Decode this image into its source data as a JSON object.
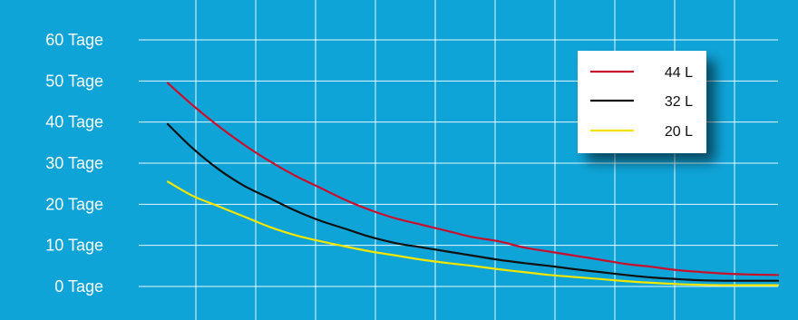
{
  "colors": {
    "background": "#0fa4d8",
    "grid": "#ffffff",
    "text": "#ffffff",
    "legend_bg": "#ffffff",
    "legend_text": "#111111"
  },
  "chart_data": {
    "type": "line",
    "title": "",
    "xlabel": "",
    "ylabel": "",
    "ylim": [
      0,
      60
    ],
    "y_ticks": [
      {
        "value": 60,
        "label": "60 Tage"
      },
      {
        "value": 50,
        "label": "50 Tage"
      },
      {
        "value": 40,
        "label": "40 Tage"
      },
      {
        "value": 30,
        "label": "30 Tage"
      },
      {
        "value": 20,
        "label": "20 Tage"
      },
      {
        "value": 10,
        "label": "10 Tage"
      },
      {
        "value": 0,
        "label": "0 Tage"
      }
    ],
    "x_tick_count": 11,
    "grid": true,
    "legend": "top-right",
    "series": [
      {
        "name": "44 L",
        "color": "#c8102e",
        "values": [
          49.5,
          44,
          39,
          34.5,
          30.5,
          27,
          24,
          21,
          18.5,
          16.5,
          15,
          13.5,
          12,
          11,
          9.5,
          8.5,
          7.5,
          6.5,
          5.5,
          4.8,
          4,
          3.5,
          3.1,
          2.9,
          2.8
        ]
      },
      {
        "name": "32 L",
        "color": "#111111",
        "values": [
          39.5,
          33.5,
          28.5,
          24.5,
          21.5,
          18.5,
          16,
          14,
          12,
          10.5,
          9.5,
          8.5,
          7.5,
          6.5,
          5.7,
          5,
          4.2,
          3.5,
          2.8,
          2.2,
          1.8,
          1.5,
          1.4,
          1.4,
          1.4
        ]
      },
      {
        "name": "20 L",
        "color": "#f2e500",
        "values": [
          25.5,
          22,
          19.5,
          17,
          14.5,
          12.5,
          11,
          9.7,
          8.5,
          7.5,
          6.5,
          5.7,
          5,
          4.2,
          3.5,
          2.8,
          2.3,
          1.8,
          1.3,
          0.9,
          0.6,
          0.4,
          0.3,
          0.3,
          0.3
        ]
      }
    ]
  }
}
